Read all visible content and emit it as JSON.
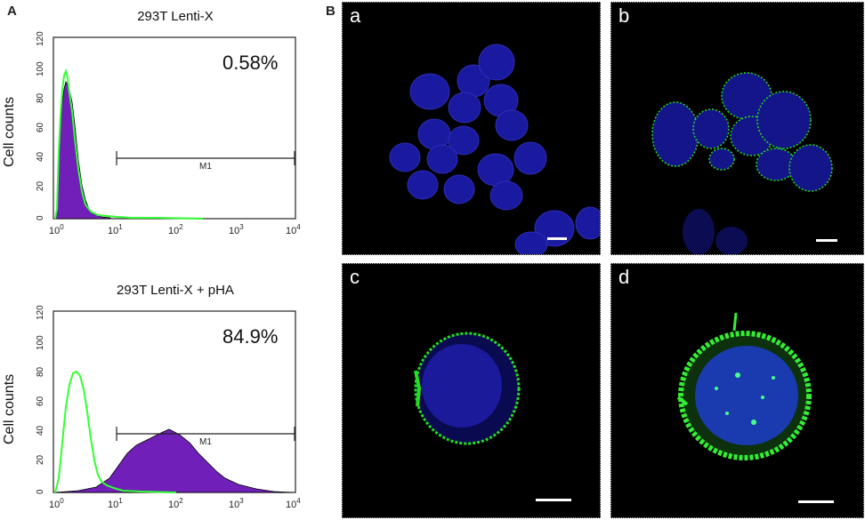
{
  "panel_a": {
    "letter": "A",
    "hist_top": {
      "title": "293T Lenti-X",
      "percent": "0.58%",
      "ylabel": "Cell counts",
      "gate_label": "M1",
      "yticks": [
        "0",
        "20",
        "40",
        "60",
        "80",
        "100",
        "120"
      ],
      "xticks": [
        {
          "base": "10",
          "exp": "0"
        },
        {
          "base": "10",
          "exp": "1"
        },
        {
          "base": "10",
          "exp": "2"
        },
        {
          "base": "10",
          "exp": "3"
        },
        {
          "base": "10",
          "exp": "4"
        }
      ]
    },
    "hist_bottom": {
      "title": "293T Lenti-X + pHA",
      "percent": "84.9%",
      "ylabel": "Cell counts",
      "gate_label": "M1",
      "yticks": [
        "0",
        "20",
        "40",
        "60",
        "80",
        "100",
        "120"
      ],
      "xticks": [
        {
          "base": "10",
          "exp": "0"
        },
        {
          "base": "10",
          "exp": "1"
        },
        {
          "base": "10",
          "exp": "2"
        },
        {
          "base": "10",
          "exp": "3"
        },
        {
          "base": "10",
          "exp": "4"
        }
      ]
    }
  },
  "panel_b": {
    "letter": "B",
    "images": [
      {
        "label": "a"
      },
      {
        "label": "b"
      },
      {
        "label": "c"
      },
      {
        "label": "d"
      }
    ]
  },
  "colors": {
    "purple": "#7020b8",
    "green": "#33ff33",
    "blue_nuclei": "#1a1aa0",
    "membrane_green": "#22dd22"
  }
}
